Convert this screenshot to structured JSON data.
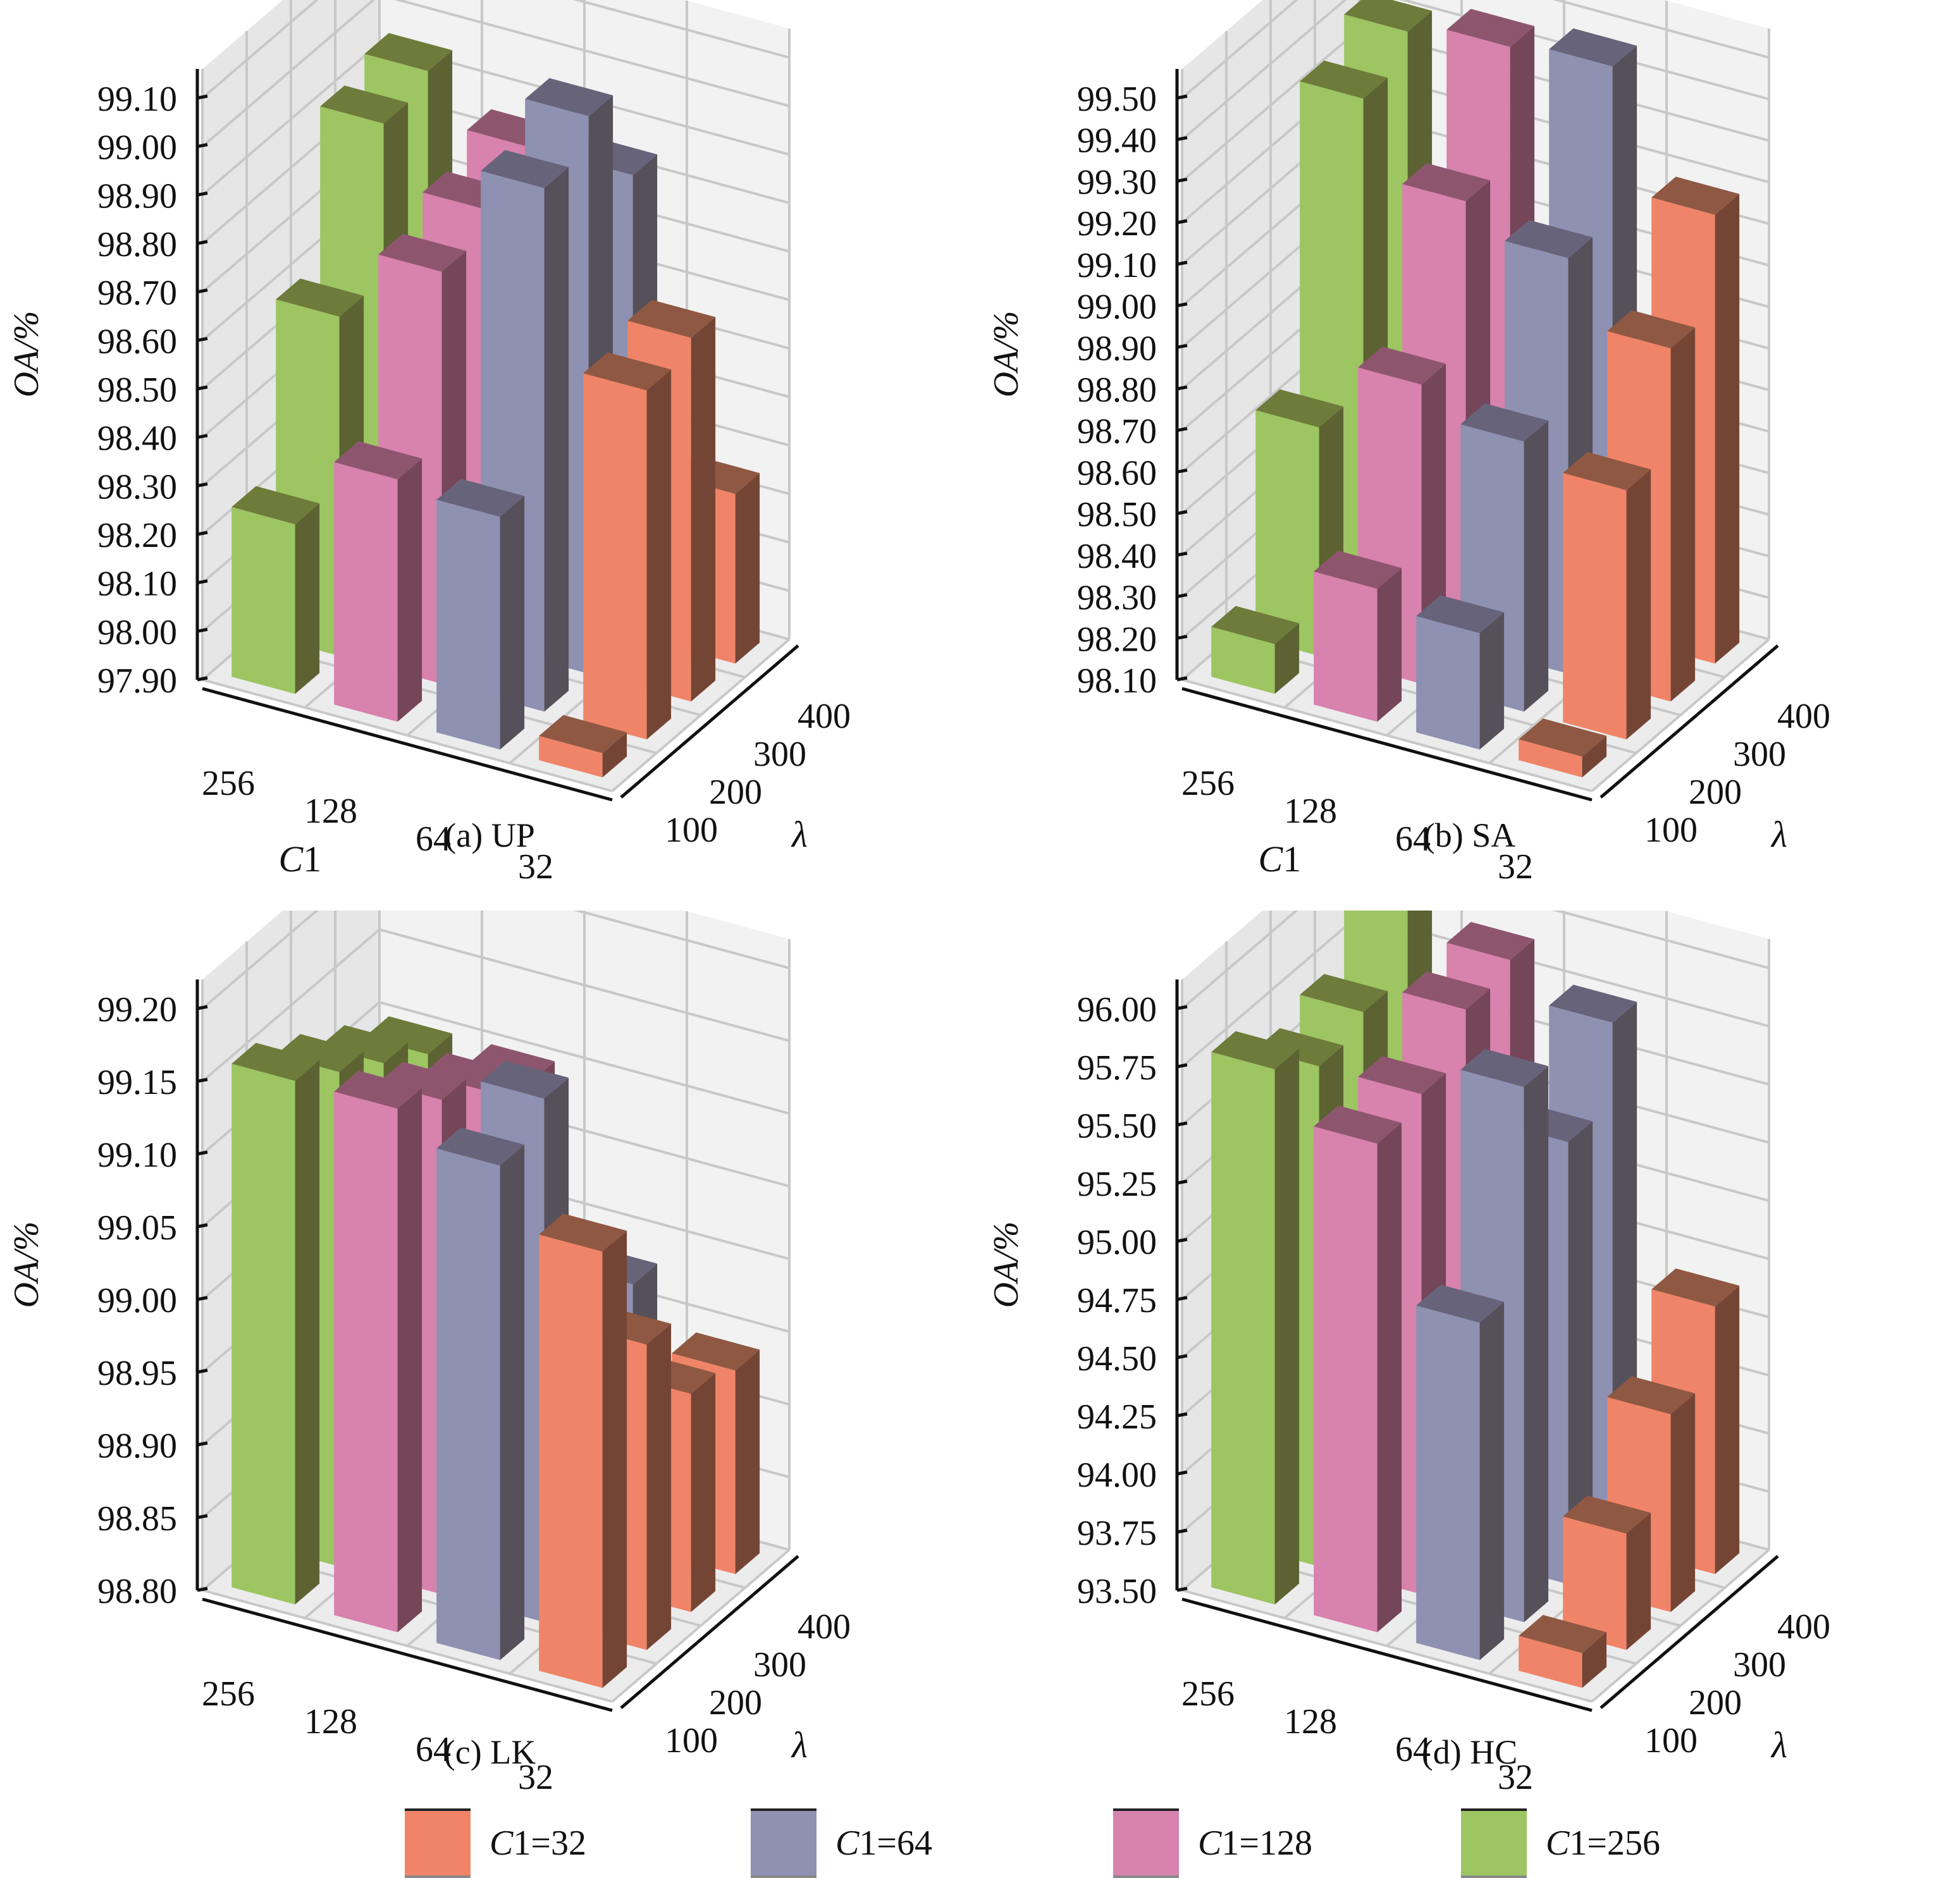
{
  "colors": {
    "C1=32": {
      "front": "#F08468",
      "top": "#8F5842",
      "side": "#744535"
    },
    "C1=64": {
      "front": "#8E91B1",
      "top": "#67637A",
      "side": "#555059"
    },
    "C1=128": {
      "front": "#D882AE",
      "top": "#8E566E",
      "side": "#754558"
    },
    "C1=256": {
      "front": "#9DC562",
      "top": "#6E7B3A",
      "side": "#5C6232"
    }
  },
  "legend": [
    {
      "key": "C1=32",
      "prefix": "C",
      "sub": "1",
      "rest": "=32"
    },
    {
      "key": "C1=64",
      "prefix": "C",
      "sub": "1",
      "rest": "=64"
    },
    {
      "key": "C1=128",
      "prefix": "C",
      "sub": "1",
      "rest": "=128"
    },
    {
      "key": "C1=256",
      "prefix": "C",
      "sub": "1",
      "rest": "=256"
    }
  ],
  "chart_data": [
    {
      "type": "bar3d",
      "title": "(a) UP",
      "zlabel": "OA/%",
      "xlabel": "C1",
      "ylabel": "λ",
      "x_categories": [
        "256",
        "128",
        "64",
        "32"
      ],
      "y_categories": [
        "100",
        "200",
        "300",
        "400"
      ],
      "zlim": [
        97.9,
        99.1
      ],
      "z_ticks": [
        "97.90",
        "98.00",
        "98.10",
        "98.20",
        "98.30",
        "98.40",
        "98.50",
        "98.60",
        "98.70",
        "98.80",
        "98.90",
        "99.00",
        "99.10"
      ],
      "series": [
        {
          "name": "C1=256",
          "values": [
            98.25,
            98.6,
            98.92,
            98.95
          ]
        },
        {
          "name": "C1=128",
          "values": [
            98.4,
            98.75,
            98.8,
            98.85
          ]
        },
        {
          "name": "C1=64",
          "values": [
            98.38,
            98.98,
            99.05,
            98.85
          ]
        },
        {
          "name": "C1=32",
          "values": [
            97.95,
            98.62,
            98.65,
            98.25
          ]
        }
      ]
    },
    {
      "type": "bar3d",
      "title": "(b) SA",
      "zlabel": "OA/%",
      "xlabel": "C1",
      "ylabel": "λ",
      "x_categories": [
        "256",
        "128",
        "64",
        "32"
      ],
      "y_categories": [
        "100",
        "200",
        "300",
        "400"
      ],
      "zlim": [
        98.1,
        99.5
      ],
      "z_ticks": [
        "98.10",
        "98.20",
        "98.30",
        "98.40",
        "98.50",
        "98.60",
        "98.70",
        "98.80",
        "98.90",
        "99.00",
        "99.10",
        "99.20",
        "99.30",
        "99.40",
        "99.50"
      ],
      "series": [
        {
          "name": "C1=256",
          "values": [
            98.22,
            98.65,
            99.35,
            99.42
          ]
        },
        {
          "name": "C1=128",
          "values": [
            98.42,
            98.82,
            99.17,
            99.45
          ]
        },
        {
          "name": "C1=64",
          "values": [
            98.38,
            98.75,
            99.1,
            99.47
          ]
        },
        {
          "name": "C1=32",
          "values": [
            98.15,
            98.7,
            98.95,
            99.18
          ]
        }
      ]
    },
    {
      "type": "bar3d",
      "title": "(c) LK",
      "zlabel": "OA/%",
      "xlabel": "",
      "ylabel": "λ",
      "x_categories": [
        "256",
        "128",
        "64",
        "32"
      ],
      "y_categories": [
        "100",
        "200",
        "300",
        "400"
      ],
      "zlim": [
        98.8,
        99.2
      ],
      "z_ticks": [
        "98.80",
        "98.85",
        "98.90",
        "98.95",
        "99.00",
        "99.05",
        "99.10",
        "99.15",
        "99.20"
      ],
      "series": [
        {
          "name": "C1=256",
          "values": [
            99.16,
            99.14,
            99.12,
            99.1
          ]
        },
        {
          "name": "C1=128",
          "values": [
            99.16,
            99.14,
            99.12,
            99.1
          ]
        },
        {
          "name": "C1=64",
          "values": [
            99.14,
            99.16,
            99.02,
            98.98
          ]
        },
        {
          "name": "C1=32",
          "values": [
            99.1,
            99.01,
            98.95,
            98.94
          ]
        }
      ]
    },
    {
      "type": "bar3d",
      "title": "(d) HC",
      "zlabel": "OA/%",
      "xlabel": "",
      "ylabel": "λ",
      "x_categories": [
        "256",
        "128",
        "64",
        "32"
      ],
      "y_categories": [
        "100",
        "200",
        "300",
        "400"
      ],
      "zlim": [
        93.5,
        96.0
      ],
      "z_ticks": [
        "93.50",
        "93.75",
        "94.00",
        "94.25",
        "94.50",
        "94.75",
        "95.00",
        "95.25",
        "95.50",
        "95.75",
        "96.00"
      ],
      "series": [
        {
          "name": "C1=256",
          "values": [
            95.8,
            95.65,
            95.72,
            96.0
          ]
        },
        {
          "name": "C1=128",
          "values": [
            95.6,
            95.65,
            95.85,
            95.9
          ]
        },
        {
          "name": "C1=64",
          "values": [
            94.95,
            95.8,
            95.4,
            95.75
          ]
        },
        {
          "name": "C1=32",
          "values": [
            93.65,
            94.0,
            94.35,
            94.65
          ]
        }
      ]
    }
  ]
}
